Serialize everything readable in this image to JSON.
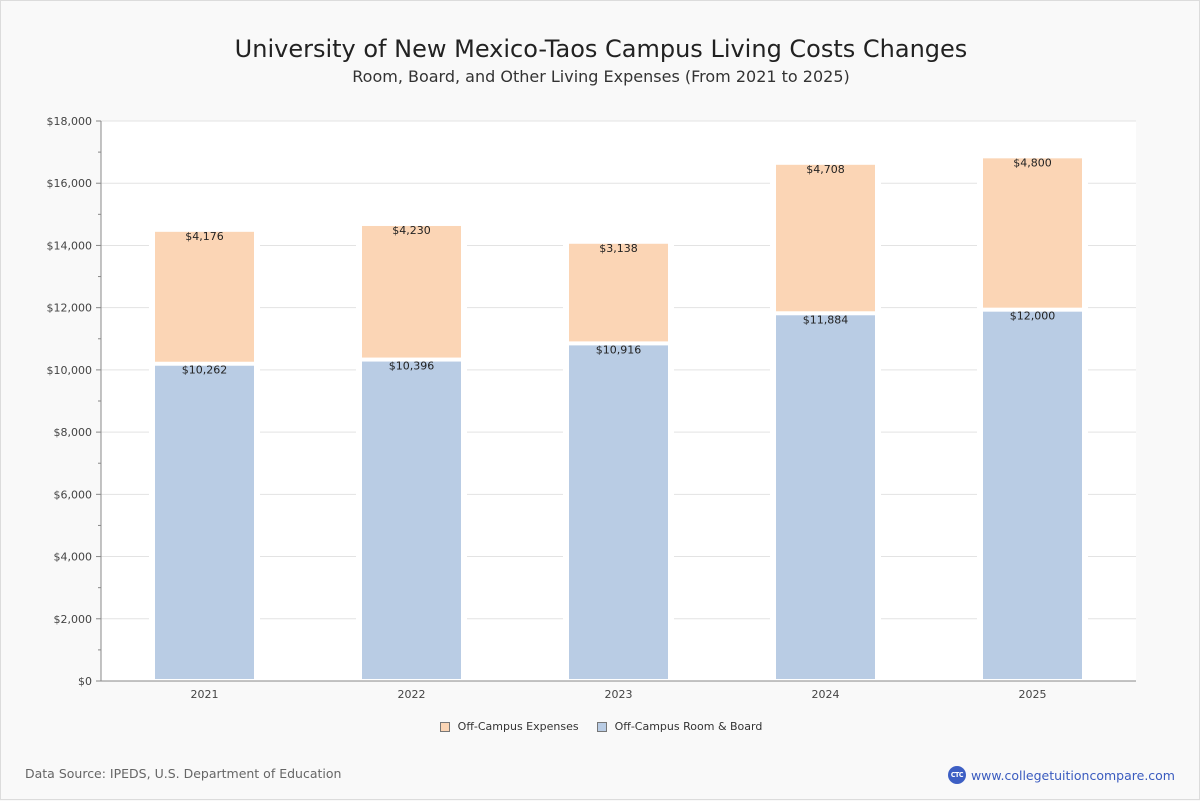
{
  "header": {
    "title": "University of New Mexico-Taos Campus Living Costs Changes",
    "subtitle": "Room, Board, and Other Living Expenses (From 2021 to 2025)"
  },
  "footer": {
    "source": "Data Source: IPEDS, U.S. Department of Education",
    "brand_logo_text": "CTC",
    "brand_url_text": "www.collegetuitioncompare.com"
  },
  "legend": [
    {
      "label": "Off-Campus Expenses",
      "color": "#fbd5b5"
    },
    {
      "label": "Off-Campus Room & Board",
      "color": "#b9cce4"
    }
  ],
  "chart_data": {
    "type": "bar",
    "stacked": true,
    "title": "University of New Mexico-Taos Campus Living Costs Changes",
    "subtitle": "Room, Board, and Other Living Expenses (From 2021 to 2025)",
    "xlabel": "",
    "ylabel": "",
    "categories": [
      "2021",
      "2022",
      "2023",
      "2024",
      "2025"
    ],
    "series": [
      {
        "name": "Off-Campus Room & Board",
        "color": "#b9cce4",
        "values": [
          10262,
          10396,
          10916,
          11884,
          12000
        ],
        "labels": [
          "$10,262",
          "$10,396",
          "$10,916",
          "$11,884",
          "$12,000"
        ]
      },
      {
        "name": "Off-Campus Expenses",
        "color": "#fbd5b5",
        "values": [
          4176,
          4230,
          3138,
          4708,
          4800
        ],
        "labels": [
          "$4,176",
          "$4,230",
          "$3,138",
          "$4,708",
          "$4,800"
        ]
      }
    ],
    "ylim": [
      0,
      18000
    ],
    "yticks": [
      0,
      2000,
      4000,
      6000,
      8000,
      10000,
      12000,
      14000,
      16000,
      18000
    ],
    "ytick_labels": [
      "$0",
      "$2,000",
      "$4,000",
      "$6,000",
      "$8,000",
      "$10,000",
      "$12,000",
      "$14,000",
      "$16,000",
      "$18,000"
    ],
    "grid": true,
    "legend_position": "bottom"
  }
}
